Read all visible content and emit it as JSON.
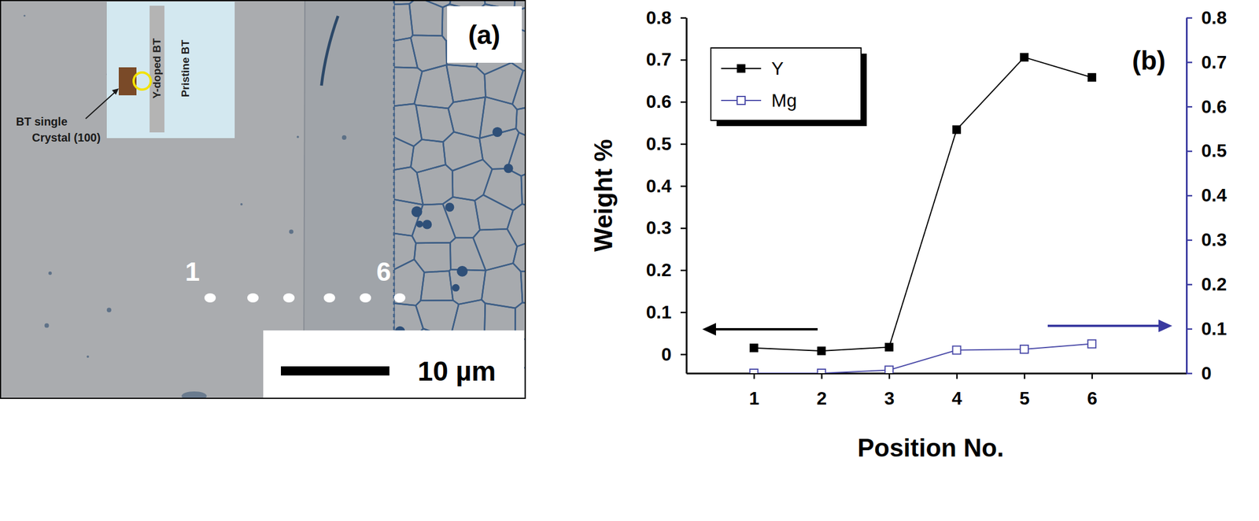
{
  "panel_a": {
    "label": "(a)",
    "inset": {
      "crystal_label": [
        "BT single",
        "Crystal (100)"
      ],
      "doped_label": "Y-doped BT",
      "pristine_label": "Pristine BT"
    },
    "line_start": "1",
    "line_end": "6",
    "scale_bar": "10 µm"
  },
  "chart_data": {
    "type": "line",
    "title": "(b)",
    "x_label": "Position No.",
    "y_label": "Weight %",
    "x": [
      1,
      2,
      3,
      4,
      5,
      6
    ],
    "xlim": [
      0,
      7.4
    ],
    "xticks": [
      1,
      2,
      3,
      4,
      5,
      6
    ],
    "ylim": [
      -0.045,
      0.8
    ],
    "yticks": [
      0,
      0.1,
      0.2,
      0.3,
      0.4,
      0.5,
      0.6,
      0.7,
      0.8
    ],
    "y2lim": [
      0,
      0.8
    ],
    "y2ticks": [
      0,
      0.1,
      0.2,
      0.3,
      0.4,
      0.5,
      0.6,
      0.7,
      0.8
    ],
    "legend": "top-left",
    "series": [
      {
        "name": "Y",
        "color": "#000000",
        "marker": "square",
        "values": [
          0.015,
          0.008,
          0.017,
          0.534,
          0.706,
          0.658
        ]
      },
      {
        "name": "Mg",
        "color": "#4a4aa8",
        "marker": "square-open",
        "axis": "y2",
        "values": [
          0,
          0,
          0.007,
          0.052,
          0.054,
          0.066
        ]
      }
    ]
  }
}
